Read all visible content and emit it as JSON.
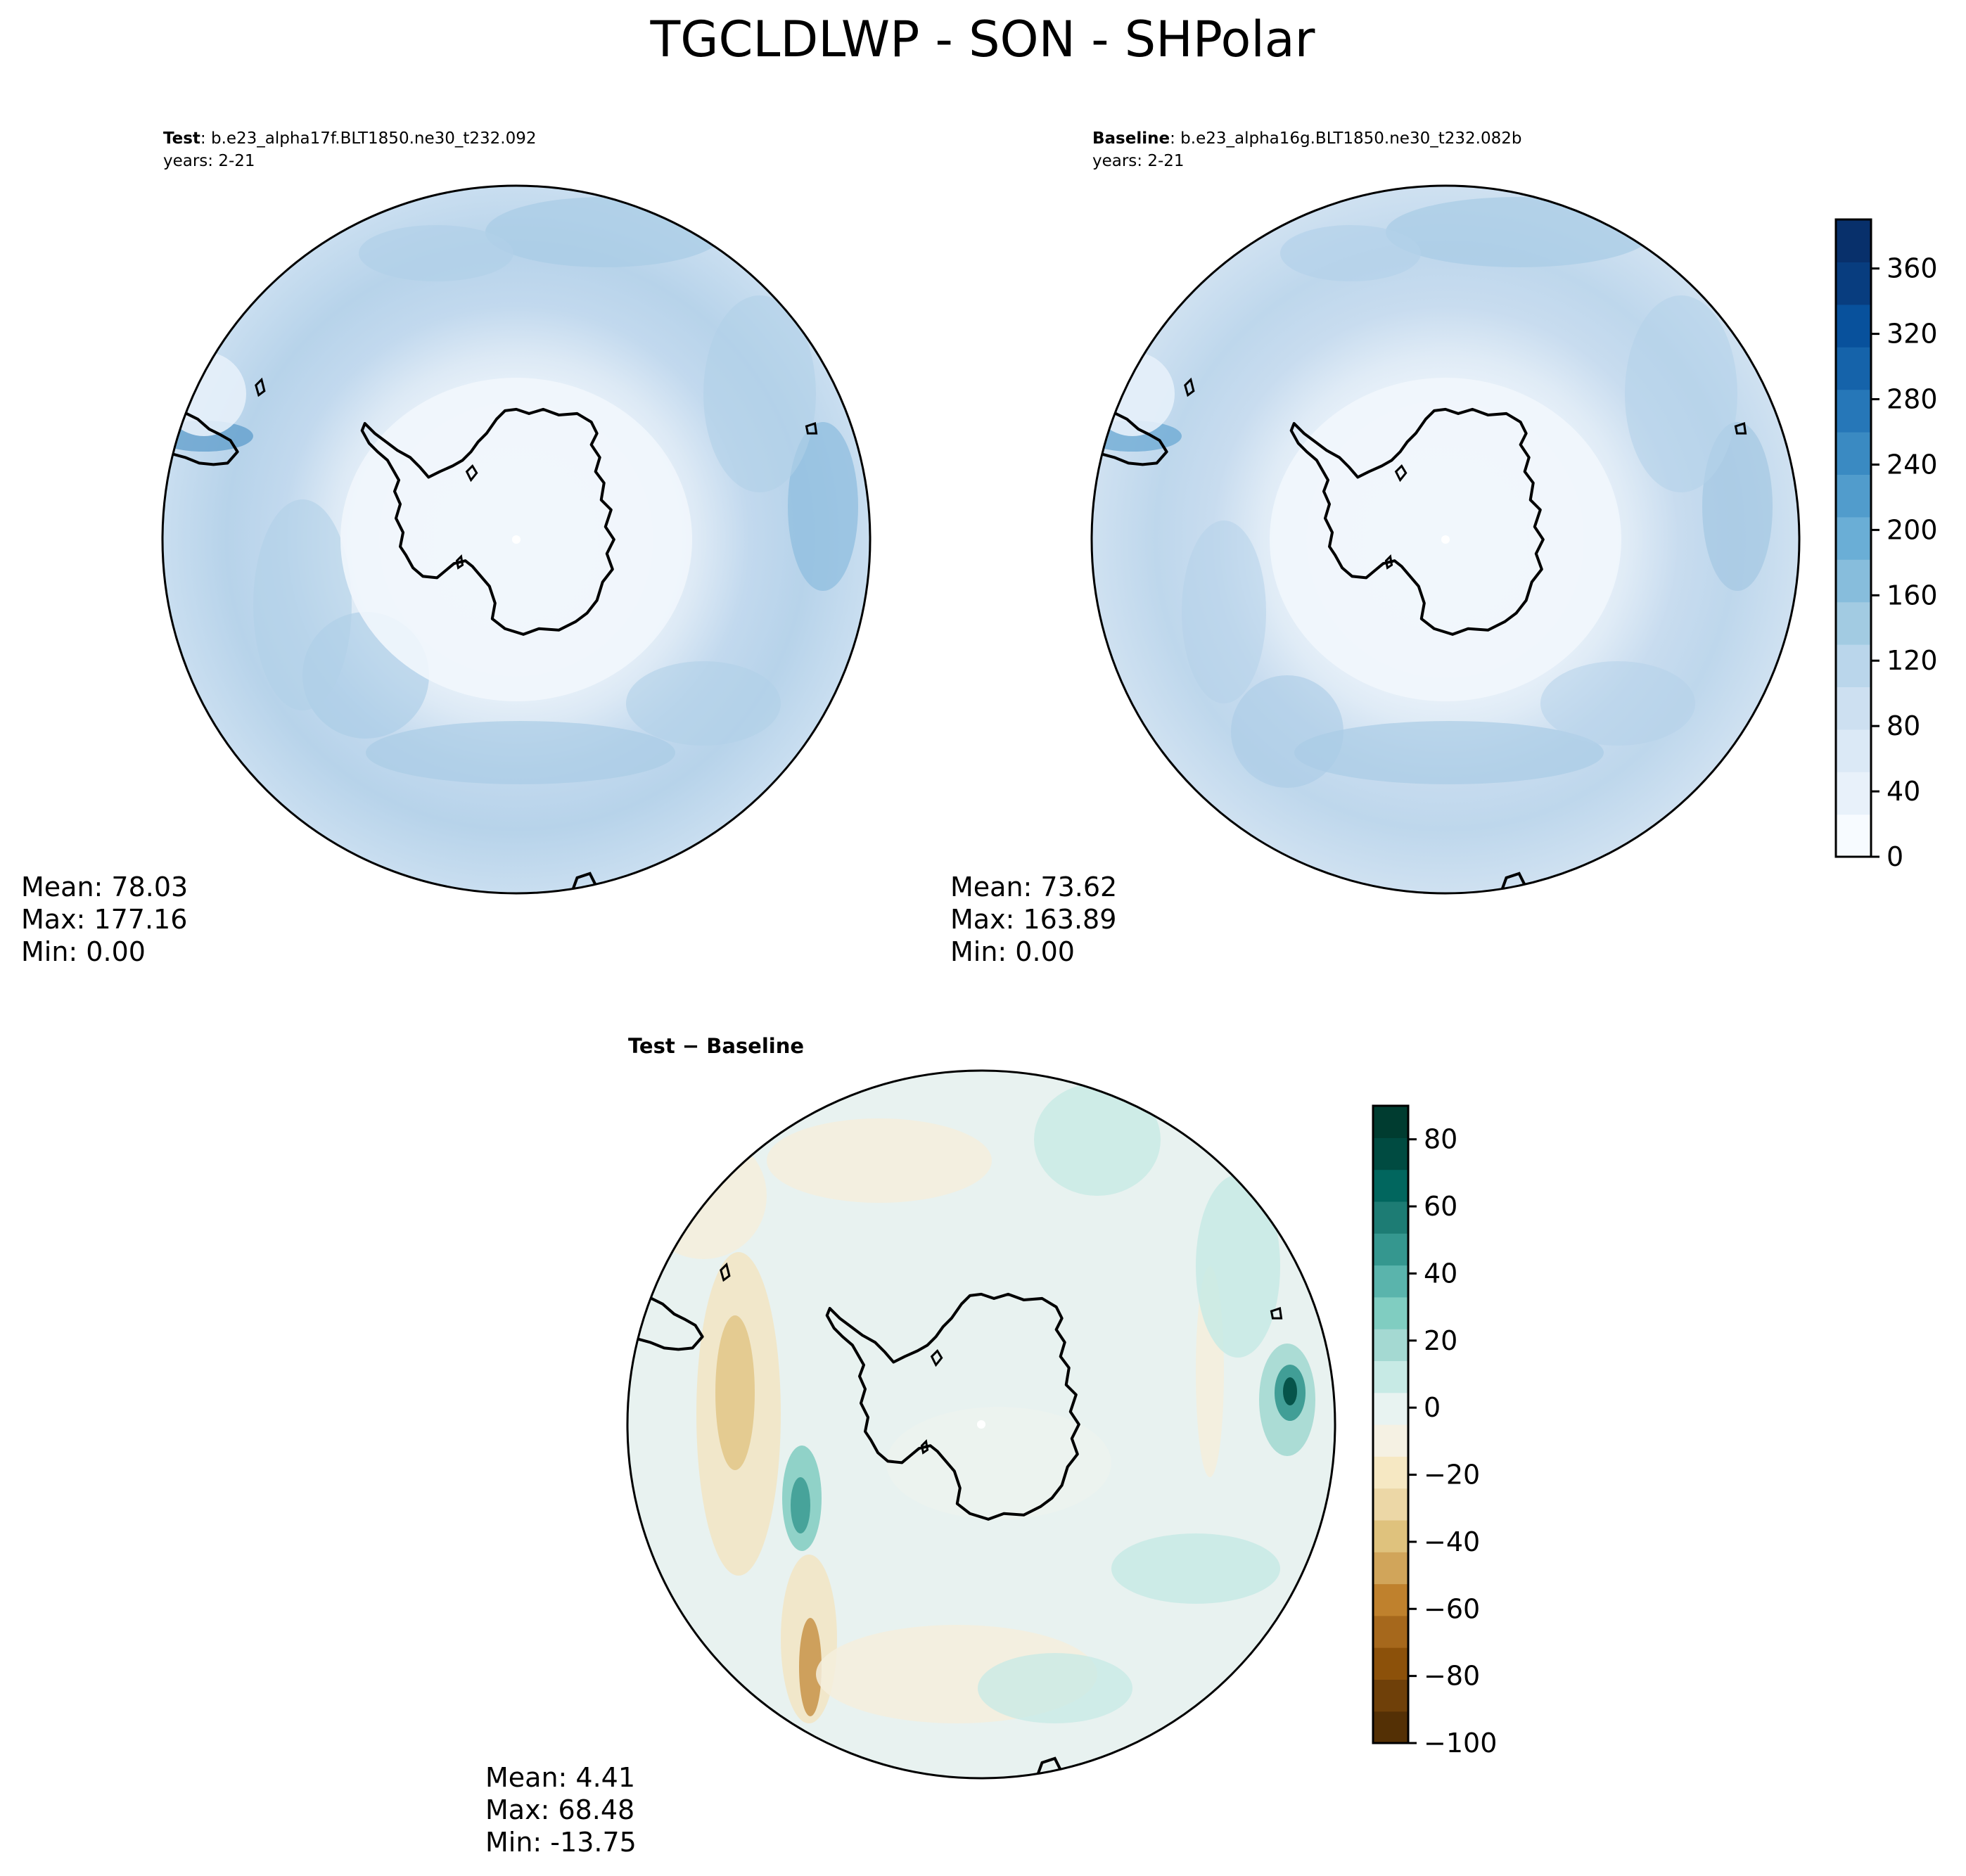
{
  "title": "TGCLDLWP - SON - SHPolar",
  "panels": [
    {
      "heading_bold": "Test",
      "heading_rest": ": b.e23_alpha17f.BLT1850.ne30_t232.092",
      "years": "years: 2-21",
      "stats": [
        "Mean: 78.03",
        "Max: 177.16",
        "Min:  0.00"
      ]
    },
    {
      "heading_bold": "Baseline",
      "heading_rest": ": b.e23_alpha16g.BLT1850.ne30_t232.082b",
      "years": "years: 2-21",
      "stats": [
        "Mean: 73.62",
        "Max: 163.89",
        "Min:  0.00"
      ]
    },
    {
      "heading_bold": "Test − Baseline",
      "heading_rest": "",
      "years": "",
      "stats": [
        "Mean:  4.41",
        "Max: 68.48",
        "Min: -13.75"
      ]
    }
  ],
  "colors": {
    "blues": [
      "#f7fbff",
      "#e8f1fa",
      "#dbe9f6",
      "#cde0f1",
      "#bad6eb",
      "#a2cbe2",
      "#87bddc",
      "#6aaed6",
      "#519ccc",
      "#3a8ac2",
      "#2677b8",
      "#1563aa",
      "#08519c",
      "#083d7f",
      "#08306b"
    ],
    "diverging": [
      "#543005",
      "#6f4009",
      "#8c510a",
      "#a6681c",
      "#bf812d",
      "#d1a55a",
      "#dfc27d",
      "#ecd7a6",
      "#f6e8c3",
      "#f5f1e3",
      "#e8f3f1",
      "#c7eae5",
      "#a4d9d2",
      "#80cdc1",
      "#5ab4ac",
      "#35978f",
      "#1d7c74",
      "#01665e",
      "#004b41",
      "#003c30"
    ]
  },
  "chart_data": [
    {
      "type": "heatmap",
      "projection": "south-polar-stereographic",
      "colorbar": null,
      "stats": {
        "mean": 78.03,
        "max": 177.16,
        "min": 0.0
      }
    },
    {
      "type": "heatmap",
      "projection": "south-polar-stereographic",
      "colorbar": {
        "range": [
          0,
          390
        ],
        "ticks": [
          0,
          40,
          80,
          120,
          160,
          200,
          240,
          280,
          320,
          360
        ],
        "tick_labels": [
          "0",
          "40",
          "80",
          "120",
          "160",
          "200",
          "240",
          "280",
          "320",
          "360"
        ],
        "colormap": "Blues"
      },
      "stats": {
        "mean": 73.62,
        "max": 163.89,
        "min": 0.0
      }
    },
    {
      "type": "heatmap",
      "projection": "south-polar-stereographic",
      "colorbar": {
        "range": [
          -100,
          90
        ],
        "ticks": [
          -100,
          -80,
          -60,
          -40,
          -20,
          0,
          20,
          40,
          60,
          80
        ],
        "tick_labels": [
          "−100",
          "−80",
          "−60",
          "−40",
          "−20",
          "0",
          "20",
          "40",
          "60",
          "80"
        ],
        "colormap": "BrBG"
      },
      "stats": {
        "mean": 4.41,
        "max": 68.48,
        "min": -13.75
      }
    }
  ]
}
